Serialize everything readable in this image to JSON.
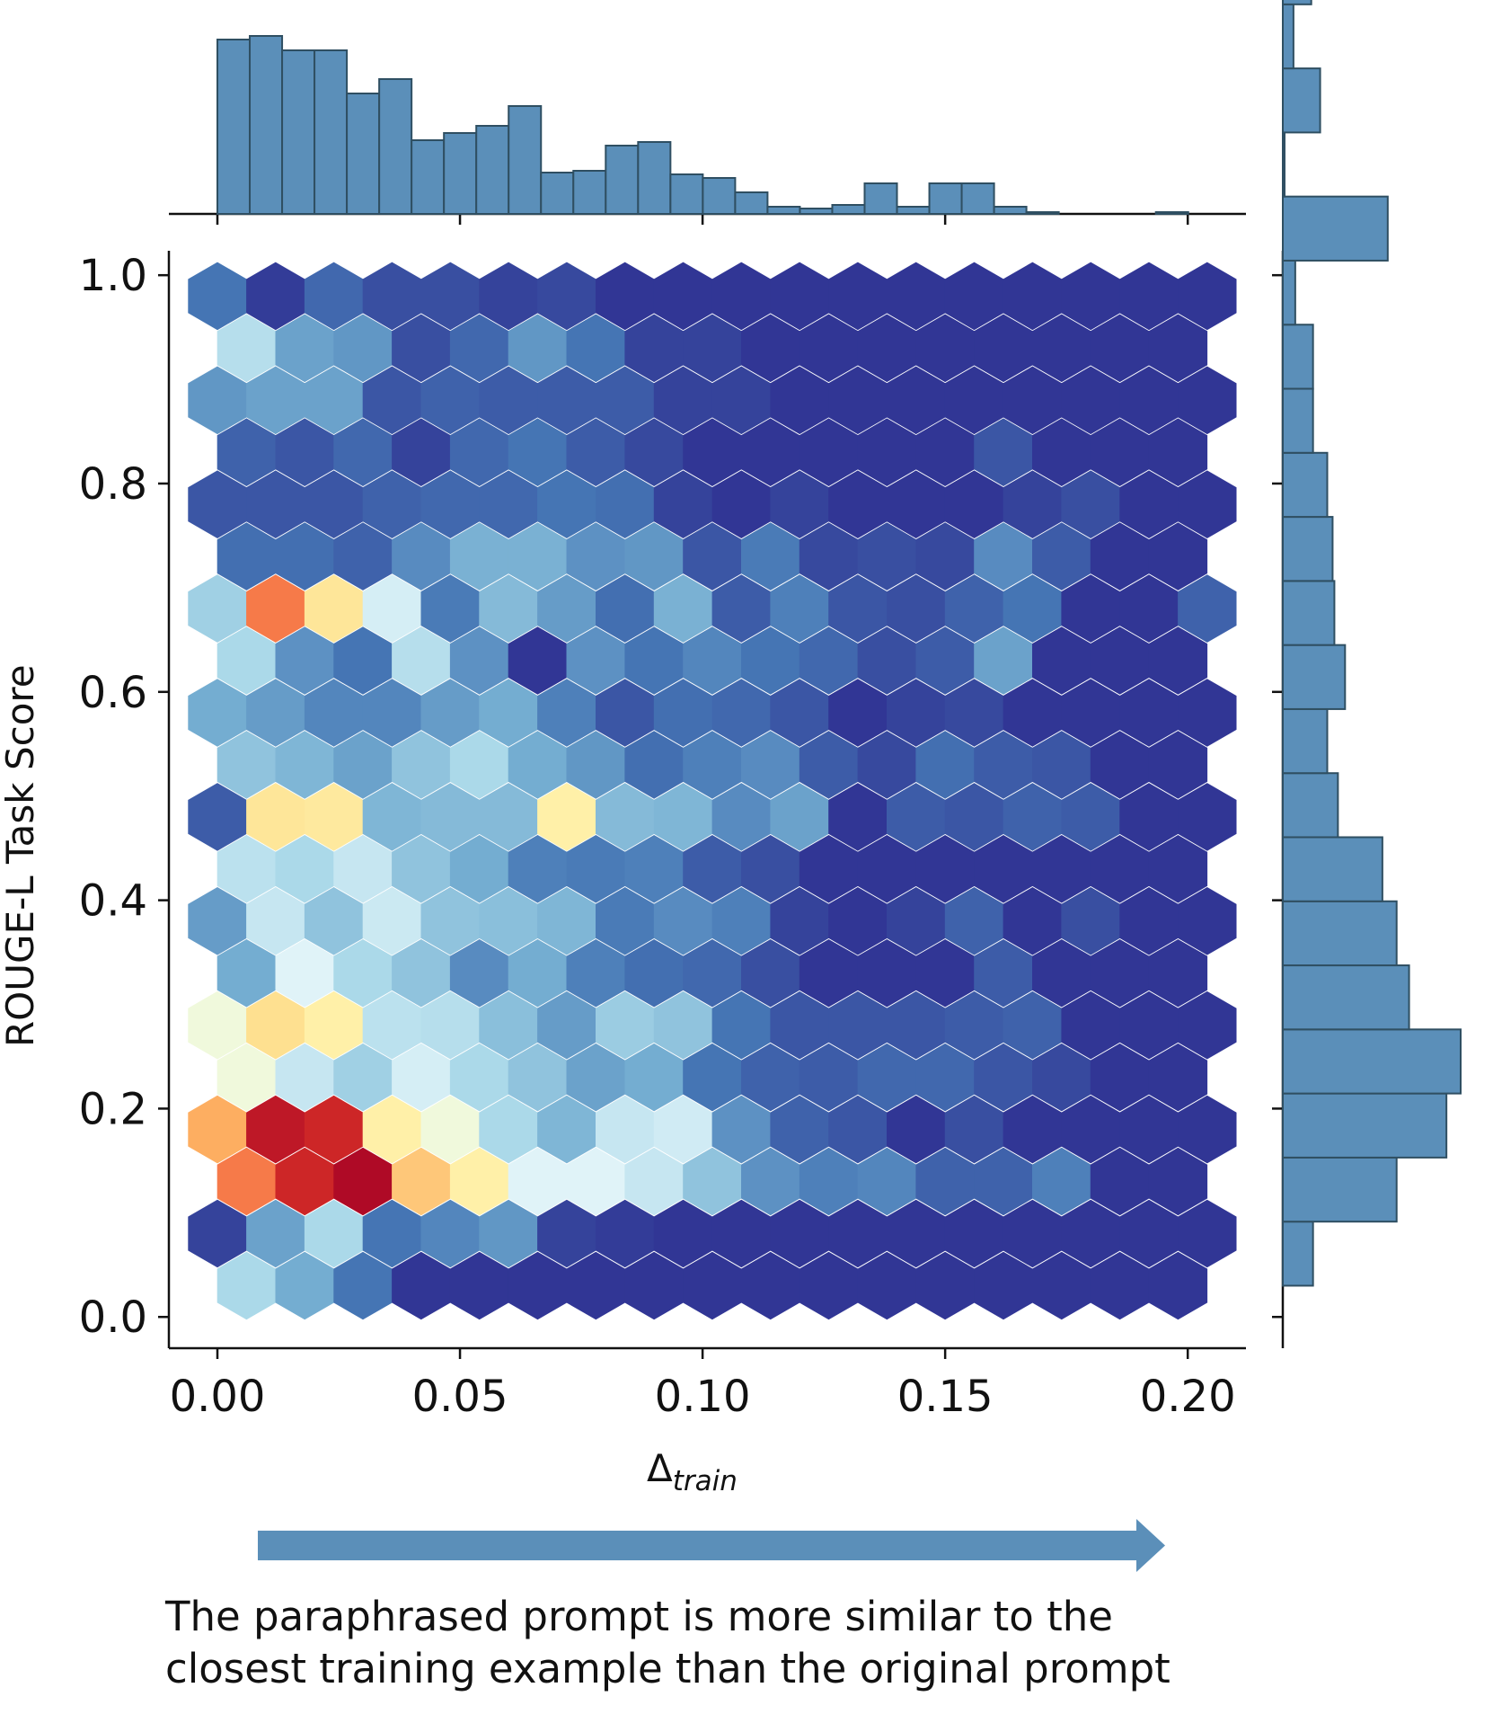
{
  "chart_data": {
    "type": "hexbin",
    "xlabel_main": "Δ",
    "xlabel_sub": "train",
    "ylabel": "ROUGE-L Task Score",
    "xlim": [
      -0.01,
      0.212
    ],
    "ylim": [
      -0.03,
      1.02
    ],
    "xticks": [
      0.0,
      0.05,
      0.1,
      0.15,
      0.2
    ],
    "xtick_labels": [
      "0.00",
      "0.05",
      "0.10",
      "0.15",
      "0.20"
    ],
    "yticks": [
      0.0,
      0.2,
      0.4,
      0.6,
      0.8,
      1.0
    ],
    "ytick_labels": [
      "0.0",
      "0.2",
      "0.4",
      "0.6",
      "0.8",
      "1.0"
    ],
    "colormap": [
      "#313695",
      "#4575b4",
      "#74add1",
      "#abd9e9",
      "#e0f3f8",
      "#ffffbf",
      "#fee090",
      "#fdae61",
      "#f46d43",
      "#d73027",
      "#a50026"
    ],
    "hex_grid": {
      "x_step": 0.012,
      "y_step": 0.05,
      "row_a_y": [
        0.03,
        0.13,
        0.23,
        0.33,
        0.43,
        0.53,
        0.63,
        0.73,
        0.83,
        0.93
      ],
      "row_b_y": [
        0.08,
        0.18,
        0.28,
        0.38,
        0.48,
        0.58,
        0.68,
        0.78,
        0.88,
        0.98
      ],
      "row_a_x0": 0.006,
      "row_b_x0": 0.0
    },
    "hex_rows_a": [
      [
        0.3,
        0.2,
        0.1,
        0.0,
        0.0,
        0.0,
        0.0,
        0.0,
        0.0,
        0.0,
        0.0,
        0.0,
        0.0,
        0.0,
        0.0,
        0.0,
        0.0
      ],
      [
        0.78,
        0.92,
        0.98,
        0.65,
        0.55,
        0.4,
        0.4,
        0.35,
        0.25,
        0.15,
        0.12,
        0.13,
        0.07,
        0.07,
        0.12,
        0.0,
        0.0
      ],
      [
        0.45,
        0.35,
        0.28,
        0.38,
        0.3,
        0.25,
        0.18,
        0.2,
        0.1,
        0.07,
        0.06,
        0.08,
        0.08,
        0.05,
        0.03,
        0.0,
        0.0
      ],
      [
        0.2,
        0.4,
        0.3,
        0.25,
        0.14,
        0.2,
        0.12,
        0.09,
        0.08,
        0.04,
        0.0,
        0.0,
        0.0,
        0.06,
        0.0,
        0.0,
        0.0
      ],
      [
        0.33,
        0.3,
        0.35,
        0.25,
        0.2,
        0.12,
        0.11,
        0.12,
        0.06,
        0.04,
        0.0,
        0.0,
        0.0,
        0.0,
        0.0,
        0.0,
        0.0
      ],
      [
        0.25,
        0.22,
        0.18,
        0.25,
        0.3,
        0.2,
        0.16,
        0.09,
        0.12,
        0.14,
        0.06,
        0.03,
        0.09,
        0.06,
        0.05,
        0.0,
        0.0
      ],
      [
        0.3,
        0.15,
        0.1,
        0.32,
        0.15,
        0.0,
        0.15,
        0.1,
        0.13,
        0.1,
        0.08,
        0.04,
        0.06,
        0.18,
        0.0,
        0.0,
        0.0
      ],
      [
        0.09,
        0.09,
        0.07,
        0.14,
        0.21,
        0.21,
        0.15,
        0.16,
        0.05,
        0.11,
        0.03,
        0.04,
        0.03,
        0.14,
        0.06,
        0.0,
        0.0
      ],
      [
        0.07,
        0.05,
        0.08,
        0.02,
        0.08,
        0.1,
        0.06,
        0.03,
        0.0,
        0.0,
        0.0,
        0.0,
        0.0,
        0.05,
        0.0,
        0.0,
        0.0
      ],
      [
        0.32,
        0.18,
        0.16,
        0.04,
        0.08,
        0.16,
        0.1,
        0.02,
        0.02,
        0.0,
        0.0,
        0.0,
        0.0,
        0.0,
        0.0,
        0.0,
        0.0
      ]
    ],
    "hex_rows_b": [
      [
        0.02,
        0.18,
        0.3,
        0.1,
        0.13,
        0.16,
        0.02,
        0.01,
        0.0,
        0.0,
        0.0,
        0.0,
        0.0,
        0.0,
        0.0,
        0.0,
        0.0,
        0.0
      ],
      [
        0.7,
        0.95,
        0.92,
        0.55,
        0.45,
        0.3,
        0.22,
        0.35,
        0.37,
        0.15,
        0.07,
        0.05,
        0.0,
        0.04,
        0.0,
        0.0,
        0.0,
        0.0
      ],
      [
        0.45,
        0.6,
        0.55,
        0.33,
        0.32,
        0.24,
        0.17,
        0.27,
        0.25,
        0.1,
        0.05,
        0.05,
        0.05,
        0.06,
        0.07,
        0.0,
        0.0,
        0.0
      ],
      [
        0.17,
        0.35,
        0.25,
        0.36,
        0.25,
        0.24,
        0.22,
        0.11,
        0.14,
        0.12,
        0.02,
        0.0,
        0.02,
        0.07,
        0.0,
        0.04,
        0.0,
        0.0
      ],
      [
        0.06,
        0.58,
        0.57,
        0.22,
        0.23,
        0.23,
        0.55,
        0.23,
        0.22,
        0.14,
        0.18,
        0.0,
        0.06,
        0.05,
        0.07,
        0.06,
        0.0,
        0.0
      ],
      [
        0.2,
        0.17,
        0.13,
        0.13,
        0.17,
        0.2,
        0.12,
        0.05,
        0.09,
        0.08,
        0.05,
        0.0,
        0.02,
        0.03,
        0.0,
        0.0,
        0.0,
        0.0
      ],
      [
        0.28,
        0.78,
        0.58,
        0.38,
        0.11,
        0.23,
        0.17,
        0.09,
        0.21,
        0.06,
        0.12,
        0.05,
        0.04,
        0.07,
        0.1,
        0.0,
        0.0,
        0.07
      ],
      [
        0.05,
        0.05,
        0.05,
        0.07,
        0.08,
        0.08,
        0.1,
        0.09,
        0.02,
        0.0,
        0.02,
        0.0,
        0.0,
        0.0,
        0.02,
        0.04,
        0.0,
        0.0
      ],
      [
        0.16,
        0.18,
        0.18,
        0.05,
        0.07,
        0.06,
        0.06,
        0.06,
        0.02,
        0.02,
        0.0,
        0.0,
        0.0,
        0.0,
        0.0,
        0.0,
        0.0,
        0.0
      ],
      [
        0.1,
        0.01,
        0.08,
        0.04,
        0.04,
        0.02,
        0.03,
        0.0,
        0.0,
        0.0,
        0.0,
        0.0,
        0.0,
        0.0,
        0.0,
        0.0,
        0.0,
        0.0
      ]
    ],
    "top_hist": {
      "bin_edges_start": 0.0,
      "bin_width": 0.00667,
      "relative_heights": [
        0.97,
        0.99,
        0.91,
        0.91,
        0.67,
        0.75,
        0.41,
        0.45,
        0.49,
        0.6,
        0.23,
        0.24,
        0.38,
        0.4,
        0.22,
        0.2,
        0.12,
        0.04,
        0.03,
        0.05,
        0.17,
        0.04,
        0.17,
        0.17,
        0.04,
        0.01,
        0.0,
        0.0,
        0.0,
        0.01
      ]
    },
    "right_hist": {
      "y_bins_start": 0.03,
      "bin_height": 0.0615,
      "relative_widths": [
        0.17,
        0.64,
        0.92,
        1.0,
        0.71,
        0.64,
        0.56,
        0.31,
        0.25,
        0.35,
        0.29,
        0.28,
        0.25,
        0.17,
        0.17,
        0.07,
        0.59,
        0.01,
        0.21,
        0.06,
        0.16,
        0.05,
        0.12,
        0.62,
        0.07,
        0.07,
        0.15,
        0.22,
        0.07,
        0.0,
        0.11,
        0.06,
        0.01,
        0.08
      ]
    },
    "bar_color": "#5b8fb9",
    "bar_edge": "#2f4f62"
  },
  "arrow_color": "#5b8fb9",
  "caption": {
    "line1": "The paraphrased prompt is more similar to the",
    "line2": "closest training example than the original prompt"
  }
}
